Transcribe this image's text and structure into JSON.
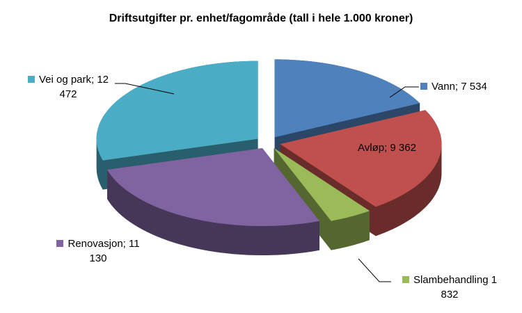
{
  "chart_data": {
    "type": "pie3d",
    "title": "Driftsutgifter pr. enhet/fagområde (tall i hele 1.000 kroner)",
    "values": [
      7534,
      9362,
      1832,
      11130,
      12472
    ],
    "value_labels": [
      "Vann; 7 534",
      "Avløp; 9 362",
      "Slambehandling 1 832",
      "Renovasjon; 11 130",
      "Vei og park; 12 472"
    ],
    "colors": [
      "#4f81bd",
      "#c0504d",
      "#9bbb59",
      "#8064a2",
      "#4bacc6"
    ]
  }
}
